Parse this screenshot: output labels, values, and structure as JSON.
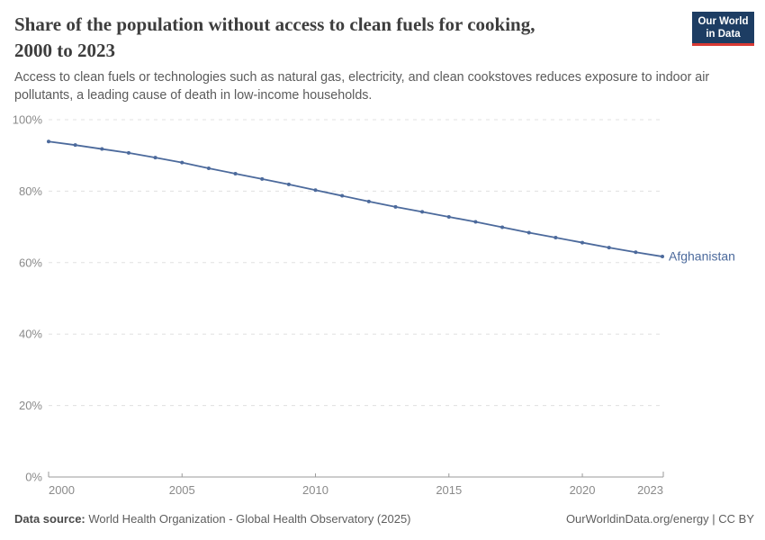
{
  "header": {
    "title_line1": "Share of the population without access to clean fuels for cooking,",
    "title_line2": "2000 to 2023",
    "subtitle_line1": "Access to clean fuels or technologies such as natural gas, electricity, and clean cookstoves reduces exposure to indoor air",
    "subtitle_line2": "pollutants, a leading cause of death in low-income households.",
    "logo": {
      "line1": "Our World",
      "line2": "in Data",
      "bg_color": "#1d3d63",
      "accent_color": "#d93a34"
    }
  },
  "chart_data": {
    "type": "line",
    "title": "Share of the population without access to clean fuels for cooking, 2000 to 2023",
    "x": [
      2000,
      2001,
      2002,
      2003,
      2004,
      2005,
      2006,
      2007,
      2008,
      2009,
      2010,
      2011,
      2012,
      2013,
      2014,
      2015,
      2016,
      2017,
      2018,
      2019,
      2020,
      2021,
      2022,
      2023
    ],
    "series": [
      {
        "name": "Afghanistan",
        "color": "#4C6A9C",
        "values": [
          93.9,
          92.9,
          91.8,
          90.7,
          89.4,
          88.0,
          86.4,
          84.9,
          83.4,
          81.9,
          80.3,
          78.7,
          77.1,
          75.6,
          74.2,
          72.8,
          71.4,
          69.9,
          68.4,
          67.0,
          65.6,
          64.2,
          62.9,
          61.7
        ]
      }
    ],
    "xlabel": "",
    "ylabel": "",
    "ylim": [
      0,
      100
    ],
    "yticks": [
      0,
      20,
      40,
      60,
      80,
      100
    ],
    "ytick_suffix": "%",
    "xticks": [
      2000,
      2005,
      2010,
      2015,
      2020,
      2023
    ],
    "grid": "horizontal-dashed",
    "legend_position": "end-of-line-label",
    "markers": true
  },
  "footer": {
    "data_source_label": "Data source:",
    "data_source_text": " World Health Organization - Global Health Observatory (2025)",
    "rights": "OurWorldinData.org/energy | CC BY"
  }
}
